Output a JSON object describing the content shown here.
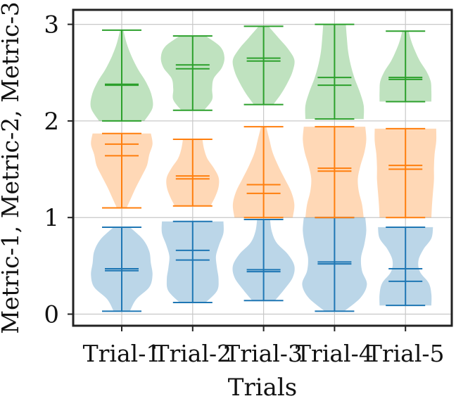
{
  "chart_data": {
    "type": "violin",
    "xlabel": "Trials",
    "ylabel": "Metric-1, Metric-2, Metric-3",
    "categories": [
      "Trial-1",
      "Trial-2",
      "Trial-3",
      "Trial-4",
      "Trial-5"
    ],
    "ylim": [
      -0.12,
      3.15
    ],
    "yticks": [
      "0",
      "1",
      "2",
      "3"
    ],
    "grid": true,
    "colors": {
      "Metric-1": "#1f77b4",
      "Metric-2": "#ff7f0e",
      "Metric-3": "#2ca02c"
    },
    "series": [
      {
        "name": "Metric-1",
        "violins": [
          {
            "min": 0.03,
            "max": 0.9,
            "mean": 0.47,
            "median": 0.45,
            "profile": [
              0.25,
              0.45,
              0.85,
              0.95,
              0.9,
              0.85,
              0.65,
              0.25
            ]
          },
          {
            "min": 0.12,
            "max": 0.96,
            "mean": 0.66,
            "median": 0.56,
            "profile": [
              0.4,
              0.75,
              0.8,
              0.75,
              0.72,
              0.82,
              0.95,
              0.95
            ]
          },
          {
            "min": 0.14,
            "max": 0.98,
            "mean": 0.46,
            "median": 0.44,
            "profile": [
              0.35,
              0.65,
              0.9,
              0.95,
              0.75,
              0.4,
              0.25,
              0.2
            ]
          },
          {
            "min": 0.03,
            "max": 1.0,
            "mean": 0.54,
            "median": 0.52,
            "profile": [
              0.3,
              0.8,
              1.0,
              0.85,
              0.82,
              0.92,
              0.98,
              0.95
            ]
          },
          {
            "min": 0.09,
            "max": 0.9,
            "mean": 0.47,
            "median": 0.34,
            "profile": [
              0.8,
              0.8,
              0.72,
              0.45,
              0.4,
              0.55,
              0.8,
              0.85
            ]
          }
        ]
      },
      {
        "name": "Metric-2",
        "violins": [
          {
            "min": 1.1,
            "max": 1.87,
            "mean": 1.76,
            "median": 1.64,
            "profile": [
              0.15,
              0.3,
              0.45,
              0.62,
              0.78,
              0.85,
              0.95,
              0.9
            ]
          },
          {
            "min": 1.12,
            "max": 1.81,
            "mean": 1.43,
            "median": 1.4,
            "profile": [
              0.55,
              0.7,
              0.8,
              0.8,
              0.65,
              0.45,
              0.35,
              0.3
            ]
          },
          {
            "min": 1.0,
            "max": 1.94,
            "mean": 1.34,
            "median": 1.25,
            "profile": [
              0.9,
              0.95,
              0.85,
              0.65,
              0.45,
              0.28,
              0.18,
              0.08
            ]
          },
          {
            "min": 1.0,
            "max": 1.94,
            "mean": 1.51,
            "median": 1.48,
            "profile": [
              0.9,
              0.85,
              0.75,
              0.72,
              0.8,
              0.92,
              0.98,
              0.95
            ]
          },
          {
            "min": 1.0,
            "max": 1.92,
            "mean": 1.54,
            "median": 1.5,
            "profile": [
              0.8,
              0.82,
              0.85,
              0.88,
              0.88,
              0.9,
              0.95,
              0.95
            ]
          }
        ]
      },
      {
        "name": "Metric-3",
        "violins": [
          {
            "min": 2.0,
            "max": 2.94,
            "mean": 2.38,
            "median": 2.37,
            "profile": [
              0.7,
              0.95,
              0.92,
              0.75,
              0.5,
              0.3,
              0.15,
              0.05
            ]
          },
          {
            "min": 2.11,
            "max": 2.88,
            "mean": 2.58,
            "median": 2.54,
            "profile": [
              0.35,
              0.6,
              0.6,
              0.65,
              0.9,
              0.98,
              0.85,
              0.4
            ]
          },
          {
            "min": 2.17,
            "max": 2.98,
            "mean": 2.65,
            "median": 2.62,
            "profile": [
              0.3,
              0.55,
              0.75,
              0.9,
              0.95,
              0.75,
              0.45,
              0.15
            ]
          },
          {
            "min": 2.02,
            "max": 3.0,
            "mean": 2.45,
            "median": 2.37,
            "profile": [
              0.9,
              0.9,
              0.78,
              0.62,
              0.5,
              0.42,
              0.38,
              0.35
            ]
          },
          {
            "min": 2.2,
            "max": 2.93,
            "mean": 2.45,
            "median": 2.43,
            "profile": [
              0.8,
              0.8,
              0.78,
              0.65,
              0.45,
              0.3,
              0.18,
              0.1
            ]
          }
        ]
      }
    ]
  }
}
